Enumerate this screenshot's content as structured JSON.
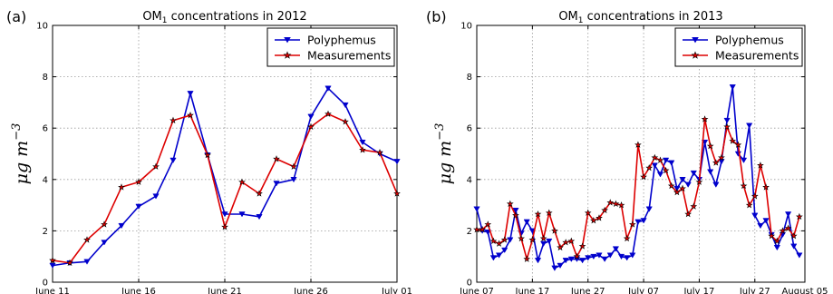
{
  "chart_data": [
    {
      "type": "line",
      "panel_label": "(a)",
      "title": {
        "prefix": "OM",
        "subscript": "1",
        "suffix": " concentrations in 2012"
      },
      "ylabel": {
        "base": "μg m",
        "superscript": "−3"
      },
      "ylim": [
        0,
        10
      ],
      "yticks": [
        "0",
        "2",
        "4",
        "6",
        "8",
        "10"
      ],
      "xlim": [
        0,
        20
      ],
      "xticks": [
        {
          "pos": 0,
          "label": "June 11"
        },
        {
          "pos": 5,
          "label": "June 16"
        },
        {
          "pos": 10,
          "label": "June 21"
        },
        {
          "pos": 15,
          "label": "June 26"
        },
        {
          "pos": 20,
          "label": "July 01"
        }
      ],
      "grid": true,
      "legend": "top-right",
      "series": [
        {
          "name": "Polyphemus",
          "color": "#0000cc",
          "marker": "triangle-down",
          "x": [
            0,
            1,
            2,
            3,
            4,
            5,
            6,
            7,
            8,
            9,
            10,
            11,
            12,
            13,
            14,
            15,
            16,
            17,
            18,
            19,
            20
          ],
          "values": [
            0.65,
            0.75,
            0.8,
            1.55,
            2.2,
            2.95,
            3.35,
            4.75,
            7.35,
            4.95,
            2.65,
            2.65,
            2.55,
            3.85,
            4.0,
            6.45,
            7.55,
            6.9,
            5.45,
            5.0,
            4.7
          ]
        },
        {
          "name": "Measurements",
          "color": "#dd0000",
          "marker": "star",
          "x": [
            0,
            1,
            2,
            3,
            4,
            5,
            6,
            7,
            8,
            9,
            10,
            11,
            12,
            13,
            14,
            15,
            16,
            17,
            18,
            19,
            20
          ],
          "values": [
            0.85,
            0.75,
            1.65,
            2.25,
            3.7,
            3.9,
            4.5,
            6.3,
            6.5,
            4.95,
            2.15,
            3.9,
            3.45,
            4.8,
            4.5,
            6.05,
            6.55,
            6.25,
            5.15,
            5.05,
            3.45
          ]
        }
      ]
    },
    {
      "type": "line",
      "panel_label": "(b)",
      "title": {
        "prefix": "OM",
        "subscript": "1",
        "suffix": " concentrations in 2013"
      },
      "ylabel": {
        "base": "μg m",
        "superscript": "−3"
      },
      "ylim": [
        0,
        10
      ],
      "yticks": [
        "0",
        "2",
        "4",
        "6",
        "8",
        "10"
      ],
      "xlim": [
        0,
        59
      ],
      "xticks": [
        {
          "pos": 0,
          "label": "June 07"
        },
        {
          "pos": 10,
          "label": "June 17"
        },
        {
          "pos": 20,
          "label": "June 27"
        },
        {
          "pos": 30,
          "label": "July 07"
        },
        {
          "pos": 40,
          "label": "July 17"
        },
        {
          "pos": 50,
          "label": "July 27"
        },
        {
          "pos": 59,
          "label": "August 05"
        }
      ],
      "grid": true,
      "legend": "top-right",
      "series": [
        {
          "name": "Polyphemus",
          "color": "#0000cc",
          "marker": "triangle-down",
          "x": [
            0,
            1,
            2,
            3,
            4,
            5,
            6,
            7,
            8,
            9,
            10,
            11,
            12,
            13,
            14,
            15,
            16,
            17,
            18,
            19,
            20,
            21,
            22,
            23,
            24,
            25,
            26,
            27,
            28,
            29,
            30,
            31,
            32,
            33,
            34,
            35,
            36,
            37,
            38,
            39,
            40,
            41,
            42,
            43,
            44,
            45,
            46,
            47,
            48,
            49,
            50,
            51,
            52,
            53,
            54,
            55,
            56,
            57,
            58
          ],
          "values": [
            2.85,
            2.0,
            1.95,
            0.95,
            1.05,
            1.25,
            1.65,
            2.8,
            1.9,
            2.35,
            2.0,
            0.85,
            1.5,
            1.6,
            0.55,
            0.65,
            0.85,
            0.9,
            0.9,
            0.85,
            0.95,
            1.0,
            1.05,
            0.9,
            1.05,
            1.3,
            1.0,
            0.95,
            1.05,
            2.35,
            2.4,
            2.85,
            4.55,
            4.2,
            4.75,
            4.65,
            3.65,
            4.0,
            3.8,
            4.25,
            4.0,
            5.45,
            4.3,
            3.8,
            4.7,
            6.3,
            7.6,
            5.0,
            4.75,
            6.1,
            2.6,
            2.2,
            2.4,
            1.85,
            1.35,
            1.85,
            2.65,
            1.4,
            1.05
          ]
        },
        {
          "name": "Measurements",
          "color": "#dd0000",
          "marker": "star",
          "x": [
            0,
            1,
            2,
            3,
            4,
            5,
            6,
            7,
            8,
            9,
            10,
            11,
            12,
            13,
            14,
            15,
            16,
            17,
            18,
            19,
            20,
            21,
            22,
            23,
            24,
            25,
            26,
            27,
            28,
            29,
            30,
            31,
            32,
            33,
            34,
            35,
            36,
            37,
            38,
            39,
            40,
            41,
            42,
            43,
            44,
            45,
            46,
            47,
            48,
            49,
            50,
            51,
            52,
            53,
            54,
            55,
            56,
            57,
            58
          ],
          "values": [
            2.05,
            2.05,
            2.25,
            1.6,
            1.5,
            1.65,
            3.05,
            2.6,
            1.7,
            0.9,
            1.65,
            2.65,
            1.7,
            2.7,
            2.0,
            1.35,
            1.55,
            1.6,
            1.0,
            1.4,
            2.7,
            2.4,
            2.5,
            2.8,
            3.1,
            3.05,
            3.0,
            1.7,
            2.25,
            5.35,
            4.1,
            4.45,
            4.85,
            4.75,
            4.35,
            3.75,
            3.5,
            3.65,
            2.65,
            2.95,
            3.9,
            6.35,
            5.3,
            4.65,
            4.85,
            6.05,
            5.5,
            5.35,
            3.75,
            3.0,
            3.35,
            4.55,
            3.7,
            1.8,
            1.6,
            2.0,
            2.1,
            1.8,
            2.55
          ]
        }
      ]
    }
  ]
}
